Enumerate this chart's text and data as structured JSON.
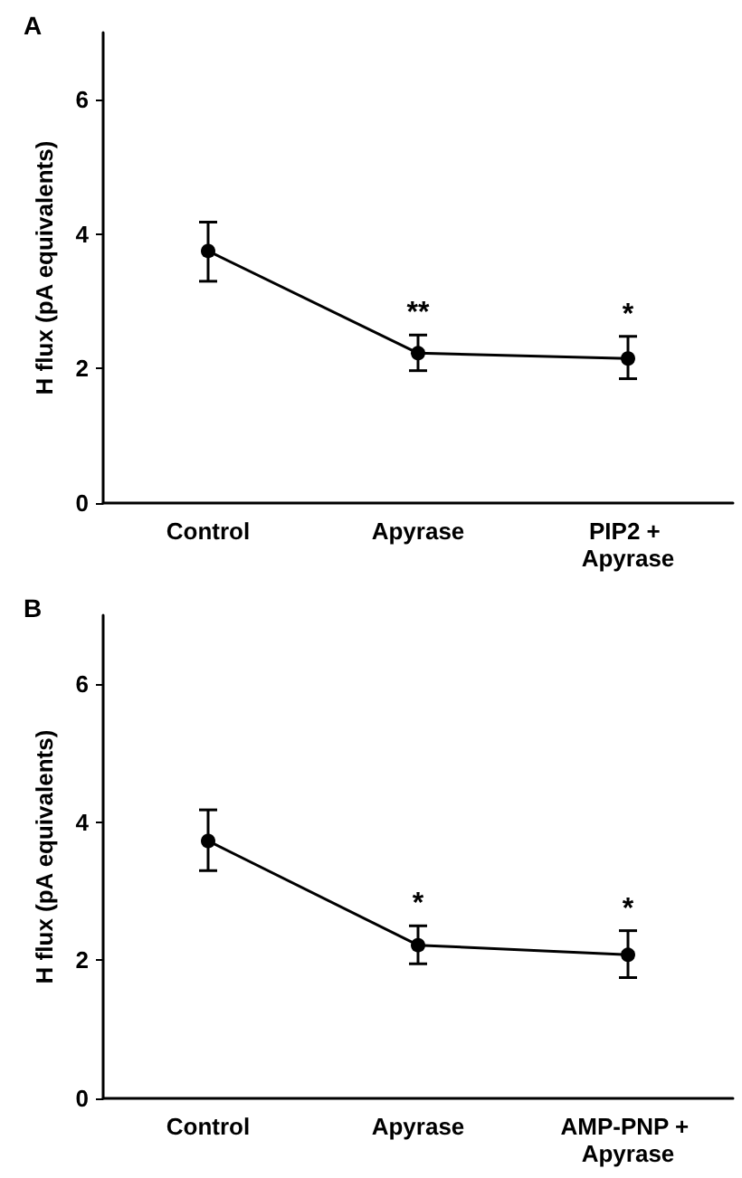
{
  "chart_data": [
    {
      "type": "line",
      "title": "A",
      "ylabel": "H flux (pA equivalents)",
      "categories": [
        "Control",
        "Apyrase",
        "PIP2 + Apyrase"
      ],
      "series": [
        {
          "color": "#000000",
          "values": [
            3.75,
            2.23,
            2.15
          ],
          "errors": [
            [
              3.3,
              4.18
            ],
            [
              1.97,
              2.5
            ],
            [
              1.85,
              2.48
            ]
          ]
        }
      ],
      "ylim": [
        0,
        7
      ],
      "yticks": [
        0,
        2,
        4,
        6
      ],
      "marker": "circle",
      "line_style": "solid",
      "grid": false,
      "annotations": [
        {
          "text": "**",
          "x": "Apyrase",
          "y": 2.23
        },
        {
          "text": "*",
          "x": "PIP2 + Apyrase",
          "y": 2.15
        }
      ]
    },
    {
      "type": "line",
      "title": "B",
      "ylabel": "H flux (pA equivalents)",
      "categories": [
        "Control",
        "Apyrase",
        "AMP-PNP + Apyrase"
      ],
      "series": [
        {
          "color": "#000000",
          "values": [
            3.73,
            2.22,
            2.08
          ],
          "errors": [
            [
              3.3,
              4.18
            ],
            [
              1.95,
              2.5
            ],
            [
              1.75,
              2.43
            ]
          ]
        }
      ],
      "ylim": [
        0,
        7
      ],
      "yticks": [
        0,
        2,
        4,
        6
      ],
      "marker": "circle",
      "line_style": "solid",
      "grid": false,
      "annotations": [
        {
          "text": "*",
          "x": "Apyrase",
          "y": 2.22
        },
        {
          "text": "*",
          "x": "AMP-PNP + Apyrase",
          "y": 2.08
        }
      ]
    }
  ]
}
